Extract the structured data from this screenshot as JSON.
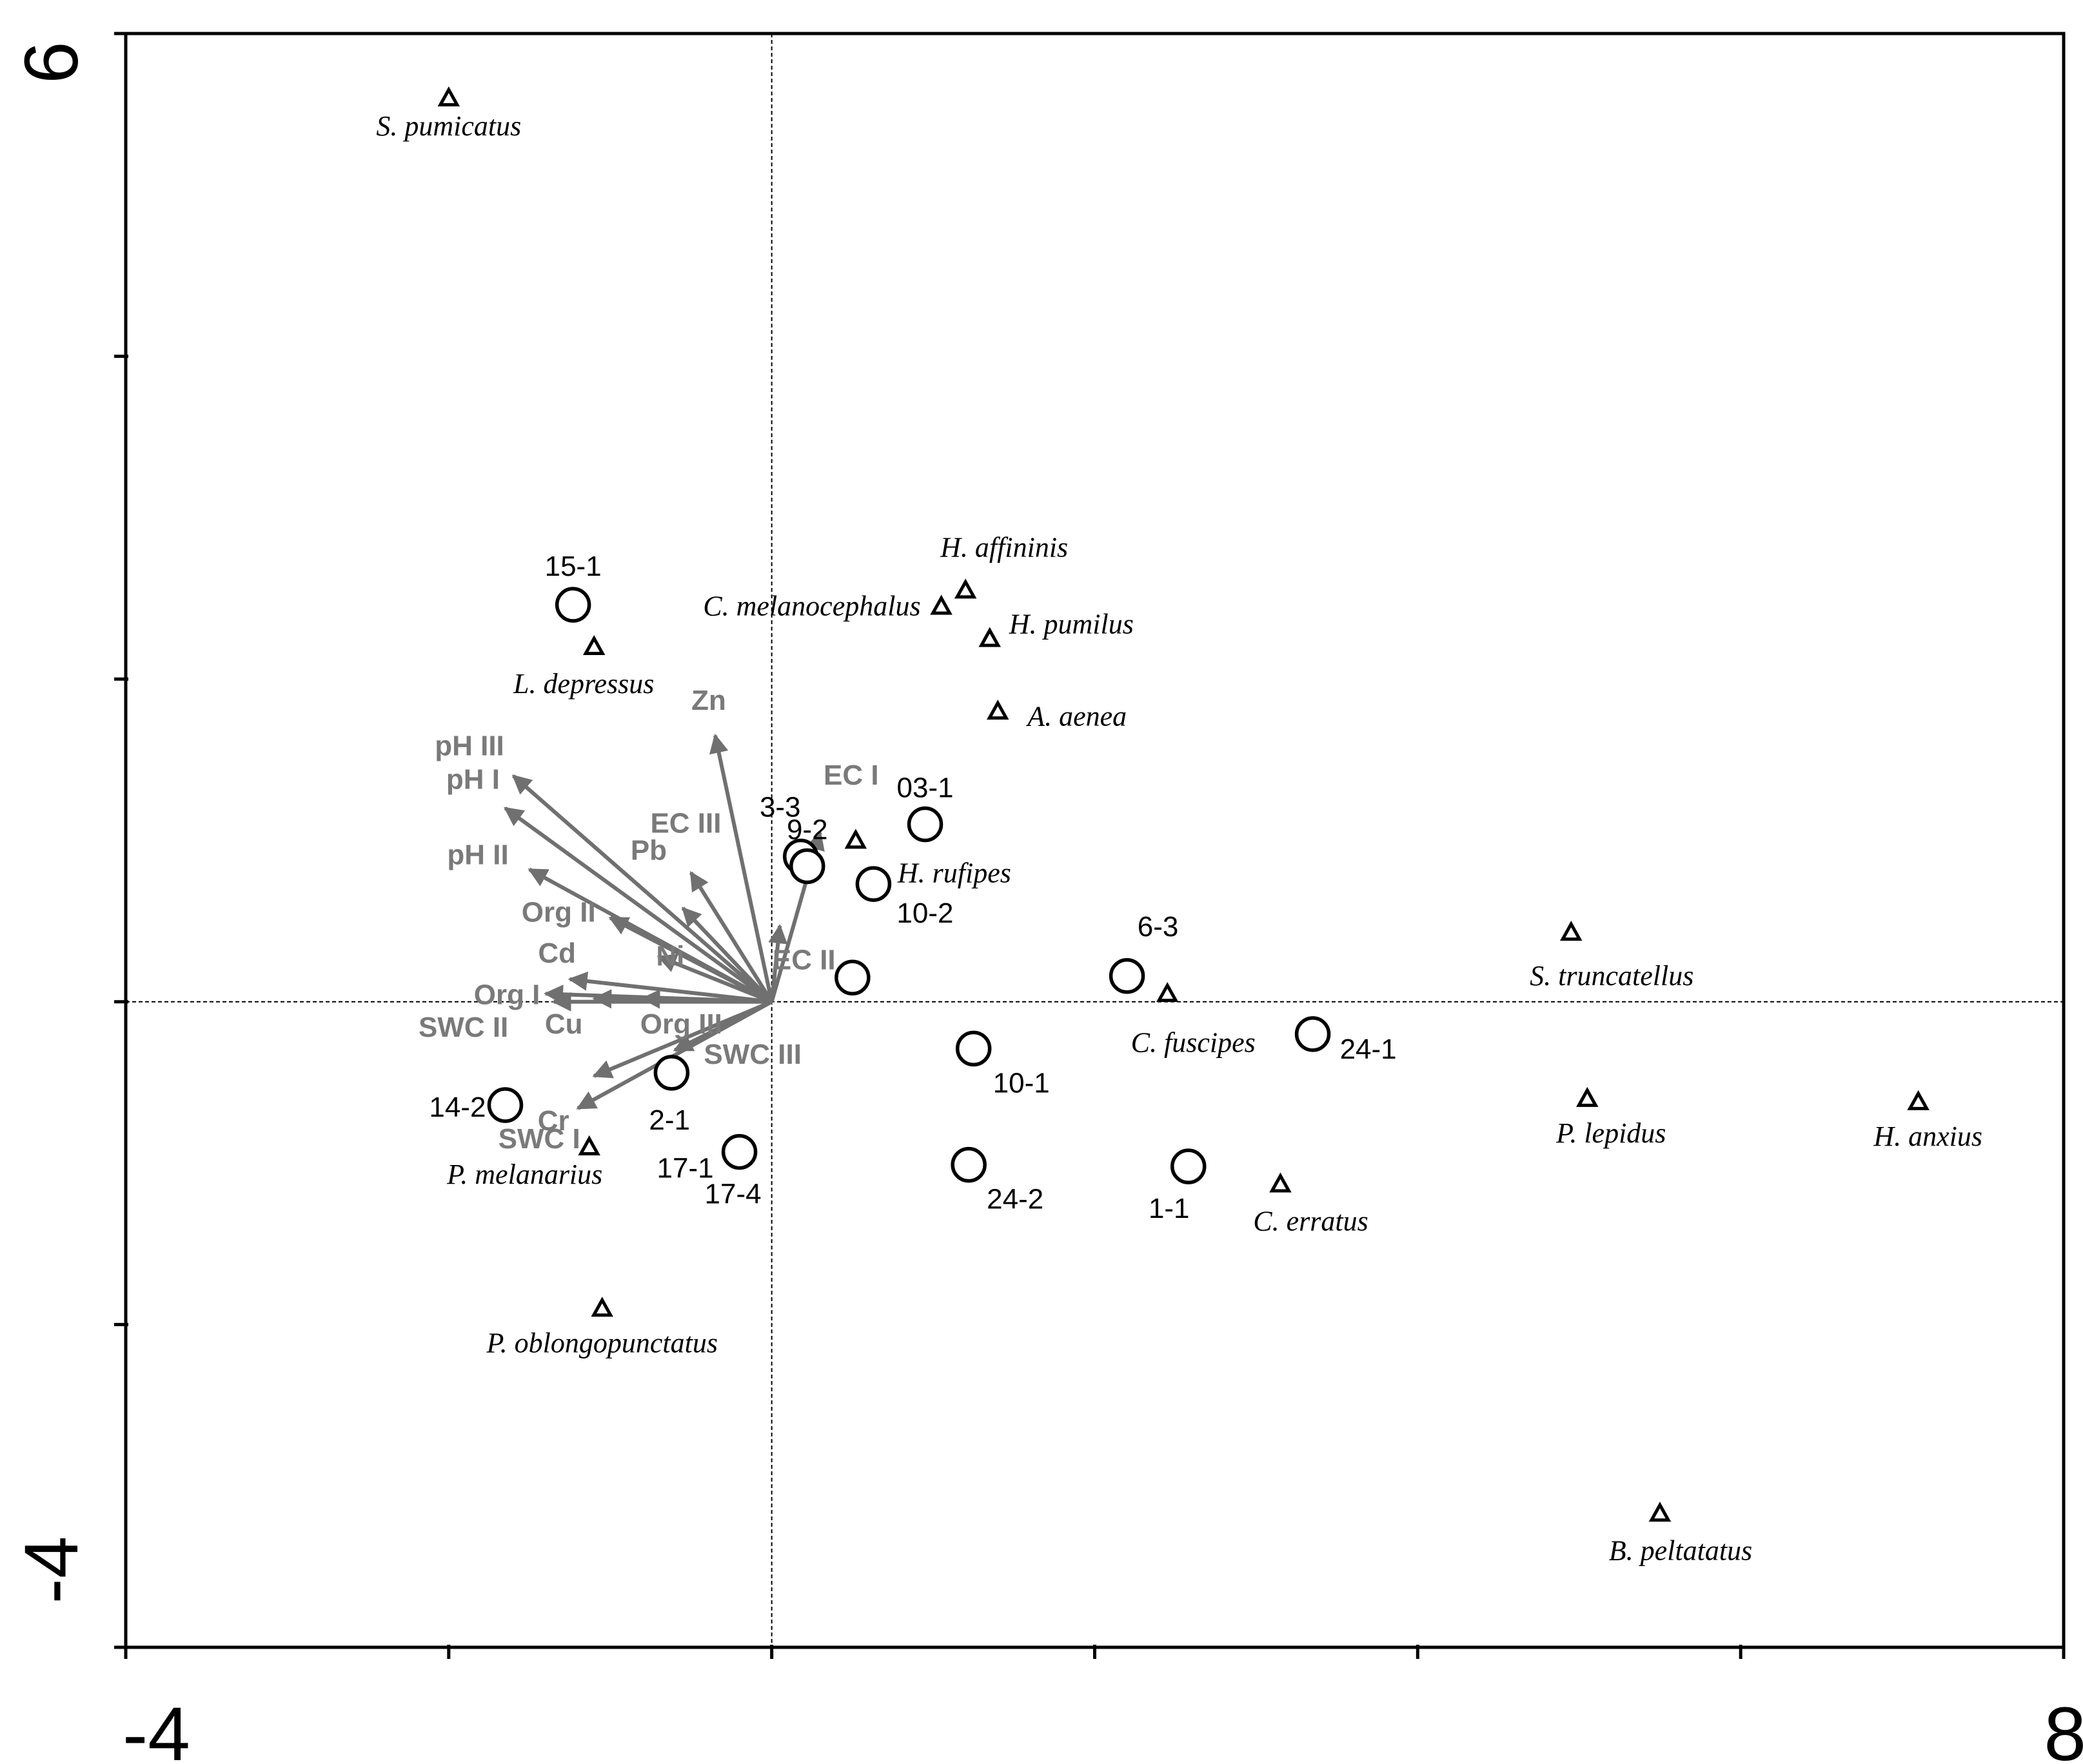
{
  "chart_data": {
    "type": "scatter",
    "title": "",
    "xlabel": "",
    "ylabel": "",
    "xlim": [
      -4,
      8
    ],
    "ylim": [
      -4,
      6
    ],
    "x_ticks_labeled": [
      {
        "value": -4,
        "label": "-4"
      },
      {
        "value": 8,
        "label": "8"
      }
    ],
    "y_ticks_labeled": [
      {
        "value": 6,
        "label": "6"
      },
      {
        "value": -4,
        "label": "-4"
      }
    ],
    "x_ticks": [
      -4,
      -2,
      0,
      2,
      4,
      6,
      8
    ],
    "y_ticks": [
      -4,
      -2,
      0,
      2,
      4,
      6
    ],
    "grid": false,
    "reference_lines": {
      "x": 0,
      "y": 0,
      "style": "dotted"
    },
    "series": [
      {
        "marker": "triangle",
        "points": [
          {
            "label": "S. pumicatus",
            "x": -2.0,
            "y": 5.6
          },
          {
            "label": "H. affininis",
            "x": 1.2,
            "y": 2.55
          },
          {
            "label": "C. melanocephalus",
            "x": 1.05,
            "y": 2.45
          },
          {
            "label": "H. pumilus",
            "x": 1.35,
            "y": 2.25
          },
          {
            "label": "A. aenea",
            "x": 1.4,
            "y": 1.8
          },
          {
            "label": "L. depressus",
            "x": -1.1,
            "y": 2.2
          },
          {
            "label": "H. rufipes",
            "x": 0.52,
            "y": 1.0
          },
          {
            "label": "C. fuscipes",
            "x": 2.45,
            "y": 0.05
          },
          {
            "label": "S. truncatellus",
            "x": 4.95,
            "y": 0.43
          },
          {
            "label": "P. lepidus",
            "x": 5.05,
            "y": -0.6
          },
          {
            "label": "H. anxius",
            "x": 7.1,
            "y": -0.62
          },
          {
            "label": "C. erratus",
            "x": 3.15,
            "y": -1.13
          },
          {
            "label": "P. melanarius",
            "x": -1.13,
            "y": -0.9
          },
          {
            "label": "P. oblongopunctatus",
            "x": -1.05,
            "y": -1.9
          },
          {
            "label": "B. peltatatus",
            "x": 5.5,
            "y": -3.17
          }
        ]
      },
      {
        "marker": "circle",
        "points": [
          {
            "label": "15-1",
            "x": -1.23,
            "y": 2.46
          },
          {
            "label": "03-1",
            "x": 0.95,
            "y": 1.1
          },
          {
            "label": "3-3",
            "x": 0.18,
            "y": 0.9
          },
          {
            "label": "9-2",
            "x": 0.22,
            "y": 0.84
          },
          {
            "label": "10-2",
            "x": 0.63,
            "y": 0.73
          },
          {
            "label": "EC II",
            "x": 0.5,
            "y": 0.15
          },
          {
            "label": "6-3",
            "x": 2.2,
            "y": 0.16
          },
          {
            "label": "24-1",
            "x": 3.35,
            "y": -0.2
          },
          {
            "label": "10-1",
            "x": 1.25,
            "y": -0.29
          },
          {
            "label": "2-1",
            "x": -0.62,
            "y": -0.44
          },
          {
            "label": "14-2",
            "x": -1.65,
            "y": -0.64
          },
          {
            "label": "17-1",
            "x": -0.2,
            "y": -0.93
          },
          {
            "label": "17-4",
            "x": -0.2,
            "y": -0.93
          },
          {
            "label": "24-2",
            "x": 1.22,
            "y": -1.01
          },
          {
            "label": "1-1",
            "x": 2.58,
            "y": -1.02
          }
        ]
      },
      {
        "marker": "arrow",
        "points": [
          {
            "label": "Zn",
            "x": -0.35,
            "y": 1.65
          },
          {
            "label": "pH III",
            "x": -1.6,
            "y": 1.4
          },
          {
            "label": "pH I",
            "x": -1.65,
            "y": 1.2
          },
          {
            "label": "pH II",
            "x": -1.5,
            "y": 0.82
          },
          {
            "label": "Pb",
            "x": -0.55,
            "y": 0.58
          },
          {
            "label": "EC III",
            "x": -0.5,
            "y": 0.8
          },
          {
            "label": "EC I",
            "x": 0.3,
            "y": 1.05
          },
          {
            "label": "EC II",
            "x": 0.05,
            "y": 0.47
          },
          {
            "label": "Org II",
            "x": -1.0,
            "y": 0.52
          },
          {
            "label": "Ni",
            "x": -0.7,
            "y": 0.28
          },
          {
            "label": "Cd",
            "x": -1.25,
            "y": 0.14
          },
          {
            "label": "Org I",
            "x": -1.4,
            "y": 0.05
          },
          {
            "label": "SWC II",
            "x": -1.35,
            "y": 0.0
          },
          {
            "label": "Cu",
            "x": -1.1,
            "y": 0.02
          },
          {
            "label": "Org III",
            "x": -0.8,
            "y": 0.02
          },
          {
            "label": "Cr",
            "x": -1.1,
            "y": -0.46
          },
          {
            "label": "SWC I",
            "x": -1.2,
            "y": -0.66
          },
          {
            "label": "SWC III",
            "x": -0.6,
            "y": -0.3
          }
        ]
      }
    ],
    "legend": "none"
  },
  "colors": {
    "axes": "#000000",
    "species": "#000000",
    "sites": "#000000",
    "arrows": "#707070",
    "arrow_labels": "#7a7a7a"
  }
}
